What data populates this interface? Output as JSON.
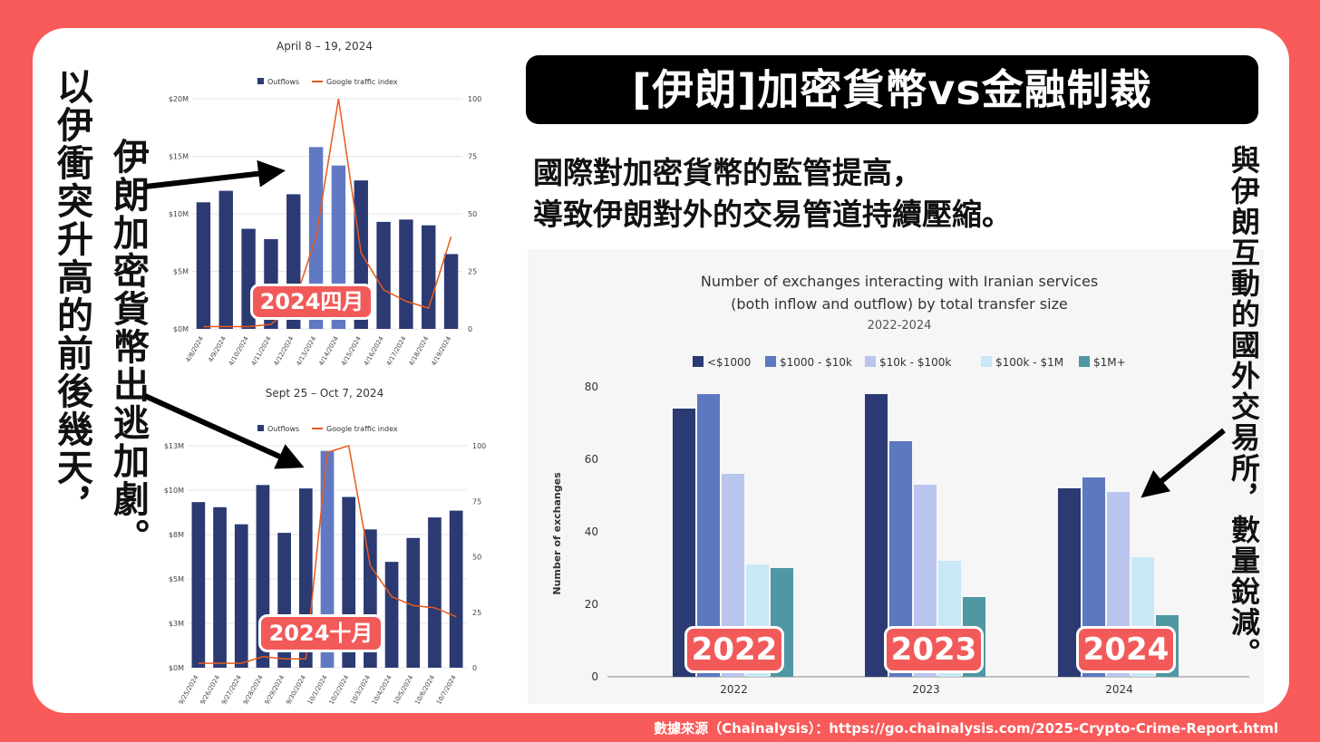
{
  "title": "[伊朗]加密貨幣vs金融制裁",
  "subtitle": [
    "國際對加密貨幣的監管提高，",
    "導致伊朗對外的交易管道持續壓縮。"
  ],
  "left_outer_text": "以伊衝突升高的前後幾天，",
  "left_inner_text": "伊朗加密貨幣出逃加劇。",
  "right_text": "與伊朗互動的國外交易所，數量銳減。",
  "footer": "數據來源（Chainalysis）：https://go.chainalysis.com/2025-Crypto-Crime-Report.html",
  "badges": {
    "april": "2024四月",
    "october": "2024十月",
    "y2022": "2022",
    "y2023": "2023",
    "y2024": "2024"
  },
  "colors": {
    "background": "#f95a5a",
    "dark_navy": "#2b3a72",
    "highlight": "#6179c2",
    "google_line": "#e8591c",
    "badge": "#f25a5a"
  },
  "chart_data": [
    {
      "type": "bar",
      "title": "April 8 – 19, 2024",
      "legend": [
        "Outflows",
        "Google traffic index"
      ],
      "categories": [
        "4/8/2024",
        "4/9/2024",
        "4/10/2024",
        "4/11/2024",
        "4/12/2024",
        "4/13/2024",
        "4/14/2024",
        "4/15/2024",
        "4/16/2024",
        "4/17/2024",
        "4/18/2024",
        "4/19/2024"
      ],
      "series": [
        {
          "name": "Outflows",
          "values": [
            11.0,
            12.0,
            8.7,
            7.8,
            11.7,
            15.8,
            14.2,
            12.9,
            9.3,
            9.5,
            9.0,
            6.5
          ],
          "highlight": [
            5,
            6
          ]
        },
        {
          "name": "Google traffic index",
          "values": [
            1,
            1,
            1,
            2,
            10,
            40,
            100,
            33,
            17,
            12,
            9,
            40
          ]
        }
      ],
      "yticks_left": [
        "$0M",
        "$5M",
        "$10M",
        "$15M",
        "$20M"
      ],
      "yticks_right": [
        "0",
        "25",
        "50",
        "75",
        "100"
      ],
      "ylim": [
        0,
        20
      ],
      "ylim_right": [
        0,
        100
      ]
    },
    {
      "type": "bar",
      "title": "Sept 25 – Oct 7, 2024",
      "legend": [
        "Outflows",
        "Google traffic index"
      ],
      "categories": [
        "9/25/2024",
        "9/26/2024",
        "9/27/2024",
        "9/28/2024",
        "9/29/2024",
        "9/30/2024",
        "10/1/2024",
        "10/2/2024",
        "10/3/2024",
        "10/4/2024",
        "10/5/2024",
        "10/6/2024",
        "10/7/2024"
      ],
      "series": [
        {
          "name": "Outflows",
          "values": [
            9.7,
            9.4,
            8.4,
            10.7,
            7.9,
            10.5,
            12.7,
            10.0,
            8.1,
            6.2,
            7.6,
            8.8,
            9.2
          ],
          "highlight": [
            6
          ]
        },
        {
          "name": "Google traffic index",
          "values": [
            2,
            2,
            2,
            5,
            4,
            4,
            97,
            100,
            46,
            32,
            28,
            27,
            23
          ]
        }
      ],
      "yticks_left": [
        "$0M",
        "$3M",
        "$5M",
        "$8M",
        "$10M",
        "$13M"
      ],
      "yticks_right": [
        "0",
        "25",
        "50",
        "75",
        "100"
      ],
      "ylim": [
        0,
        13
      ],
      "ylim_right": [
        0,
        100
      ]
    },
    {
      "type": "bar",
      "title": "Number of exchanges interacting with Iranian services",
      "title2": "(both inflow and outflow) by total transfer size",
      "subtitle": "2022-2024",
      "ylabel": "Number of exchanges",
      "categories": [
        "2022",
        "2023",
        "2024"
      ],
      "series": [
        {
          "name": "<$1000",
          "values": [
            74,
            78,
            52
          ],
          "color": "#2b3a72"
        },
        {
          "name": "$1000 - $10k",
          "values": [
            78,
            65,
            55
          ],
          "color": "#5b78c0"
        },
        {
          "name": "$10k - $100k",
          "values": [
            56,
            53,
            51
          ],
          "color": "#b9c5ee"
        },
        {
          "name": "$100k - $1M",
          "values": [
            31,
            32,
            33
          ],
          "color": "#c8e8f5"
        },
        {
          "name": "$1M+",
          "values": [
            30,
            22,
            17
          ],
          "color": "#4f97a3"
        }
      ],
      "yticks": [
        "0",
        "20",
        "40",
        "60",
        "80"
      ],
      "ylim": [
        0,
        80
      ]
    }
  ]
}
